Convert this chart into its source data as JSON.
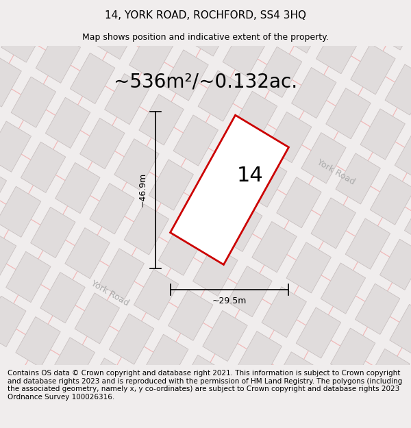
{
  "title": "14, YORK ROAD, ROCHFORD, SS4 3HQ",
  "subtitle": "Map shows position and indicative extent of the property.",
  "area_label": "~536m²/~0.132ac.",
  "property_number": "14",
  "dim_width": "~29.5m",
  "dim_height": "~46.9m",
  "road_label1": "York Road",
  "road_label2": "York Road",
  "footer": "Contains OS data © Crown copyright and database right 2021. This information is subject to Crown copyright and database rights 2023 and is reproduced with the permission of HM Land Registry. The polygons (including the associated geometry, namely x, y co-ordinates) are subject to Crown copyright and database rights 2023 Ordnance Survey 100026316.",
  "map_bg": "#ffffff",
  "page_bg": "#f0eded",
  "grid_color": "#f0b8b8",
  "building_fill": "#e0dcdc",
  "building_edge": "#c8c0c0",
  "road_label_color": "#aaaaaa",
  "property_edge": "#cc0000",
  "property_fill": "#ffffff",
  "title_fontsize": 11,
  "subtitle_fontsize": 9,
  "footer_fontsize": 7.5,
  "area_fontsize": 20,
  "number_fontsize": 22,
  "dim_fontsize": 9
}
